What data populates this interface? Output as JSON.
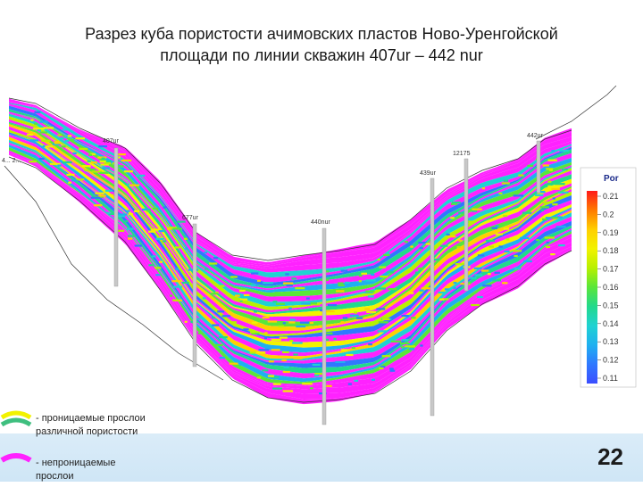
{
  "slide": {
    "title_line1": "Разрез куба пористости ачимовских пластов Ново-Уренгойской",
    "title_line2": "площади по линии скважин 407ur – 442 nur",
    "page_number": "22"
  },
  "wells": [
    {
      "name": "407ur"
    },
    {
      "name": "677ur"
    },
    {
      "name": "440nur"
    },
    {
      "name": "439ur"
    },
    {
      "name": "12175"
    },
    {
      "name": "442ur"
    }
  ],
  "corner_label": "4... 2...",
  "colorbar": {
    "title": "Por",
    "ticks": [
      "0.21",
      "0.2",
      "0.19",
      "0.18",
      "0.17",
      "0.16",
      "0.15",
      "0.14",
      "0.13",
      "0.12",
      "0.11"
    ],
    "colors": [
      "#ff1a1a",
      "#ff7a00",
      "#ffcf00",
      "#f2f200",
      "#b8f000",
      "#59e63a",
      "#22d98c",
      "#1fd2d2",
      "#1fb0f0",
      "#2f78ff",
      "#3b4dff"
    ]
  },
  "legend": [
    {
      "text_line1": "- проницаемые прослои",
      "text_line2": "различной пористости",
      "swatch_colors": [
        "#f2f200",
        "#3fbf7f"
      ]
    },
    {
      "text_line1": "- непроницаемые",
      "text_line2": "прослои",
      "swatch_colors": [
        "#ff22ff"
      ]
    }
  ],
  "colors": {
    "impermeable": "#ff22ff",
    "well": "#c8c8c8"
  }
}
